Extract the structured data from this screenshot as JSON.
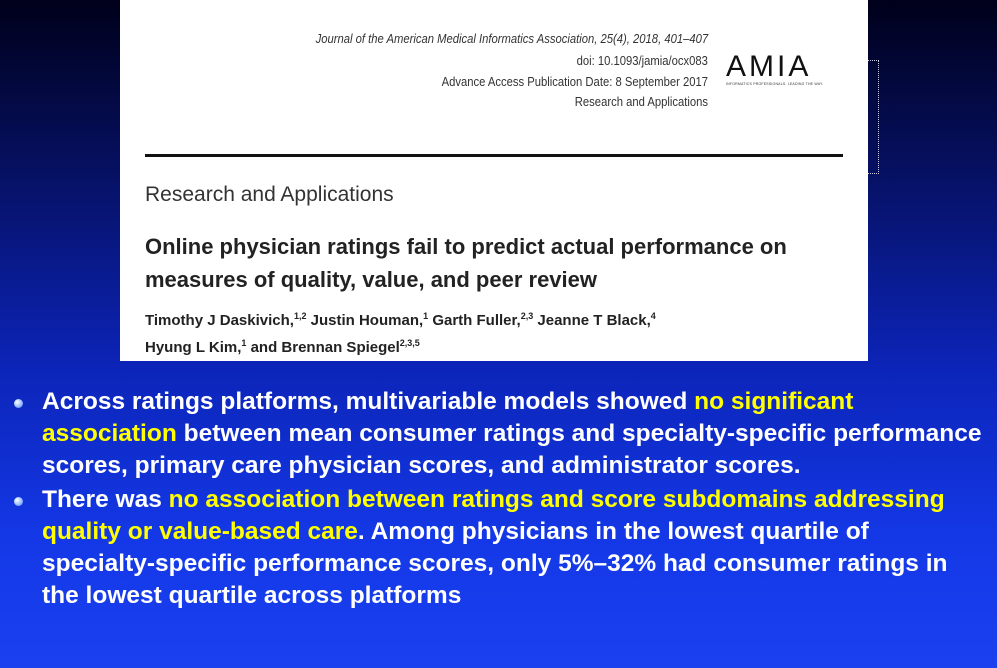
{
  "paper": {
    "journal": "Journal of the American Medical Informatics Association, 25(4), 2018, 401–407",
    "doi": "doi: 10.1093/jamia/ocx083",
    "publication_date": "Advance Access Publication Date: 8 September 2017",
    "category": "Research and Applications",
    "logo": {
      "mark": "AMIA",
      "tagline": "INFORMATICS PROFESSIONALS. LEADING THE WAY."
    },
    "section": "Research and Applications",
    "title": "Online physician ratings fail to predict actual performance on measures of quality, value, and peer review",
    "authors": [
      {
        "name": "Timothy J Daskivich,",
        "sup": "1,2"
      },
      {
        "name": " Justin Houman,",
        "sup": "1"
      },
      {
        "name": " Garth Fuller,",
        "sup": "2,3"
      },
      {
        "name": " Jeanne T Black,",
        "sup": "4"
      },
      {
        "name": "Hyung L Kim,",
        "sup": "1"
      },
      {
        "name": " and Brennan Spiegel",
        "sup": "2,3,5"
      }
    ]
  },
  "bullets": [
    {
      "pre": "Across ratings platforms, multivariable models showed ",
      "highlight": "no significant association",
      "post": " between mean consumer ratings and specialty-specific performance scores, primary care physician scores, and administrator scores."
    },
    {
      "pre": "There was ",
      "highlight": "no association between ratings and score subdomains addressing quality or value-based care",
      "post": ". Among physicians in the lowest quartile of specialty-specific performance scores, only 5%–32% had consumer ratings in the lowest quartile across platforms"
    }
  ],
  "colors": {
    "highlight": "#ffff00",
    "text": "#ffffff",
    "background_top": "#00001a",
    "background_bottom": "#1a40f0"
  }
}
